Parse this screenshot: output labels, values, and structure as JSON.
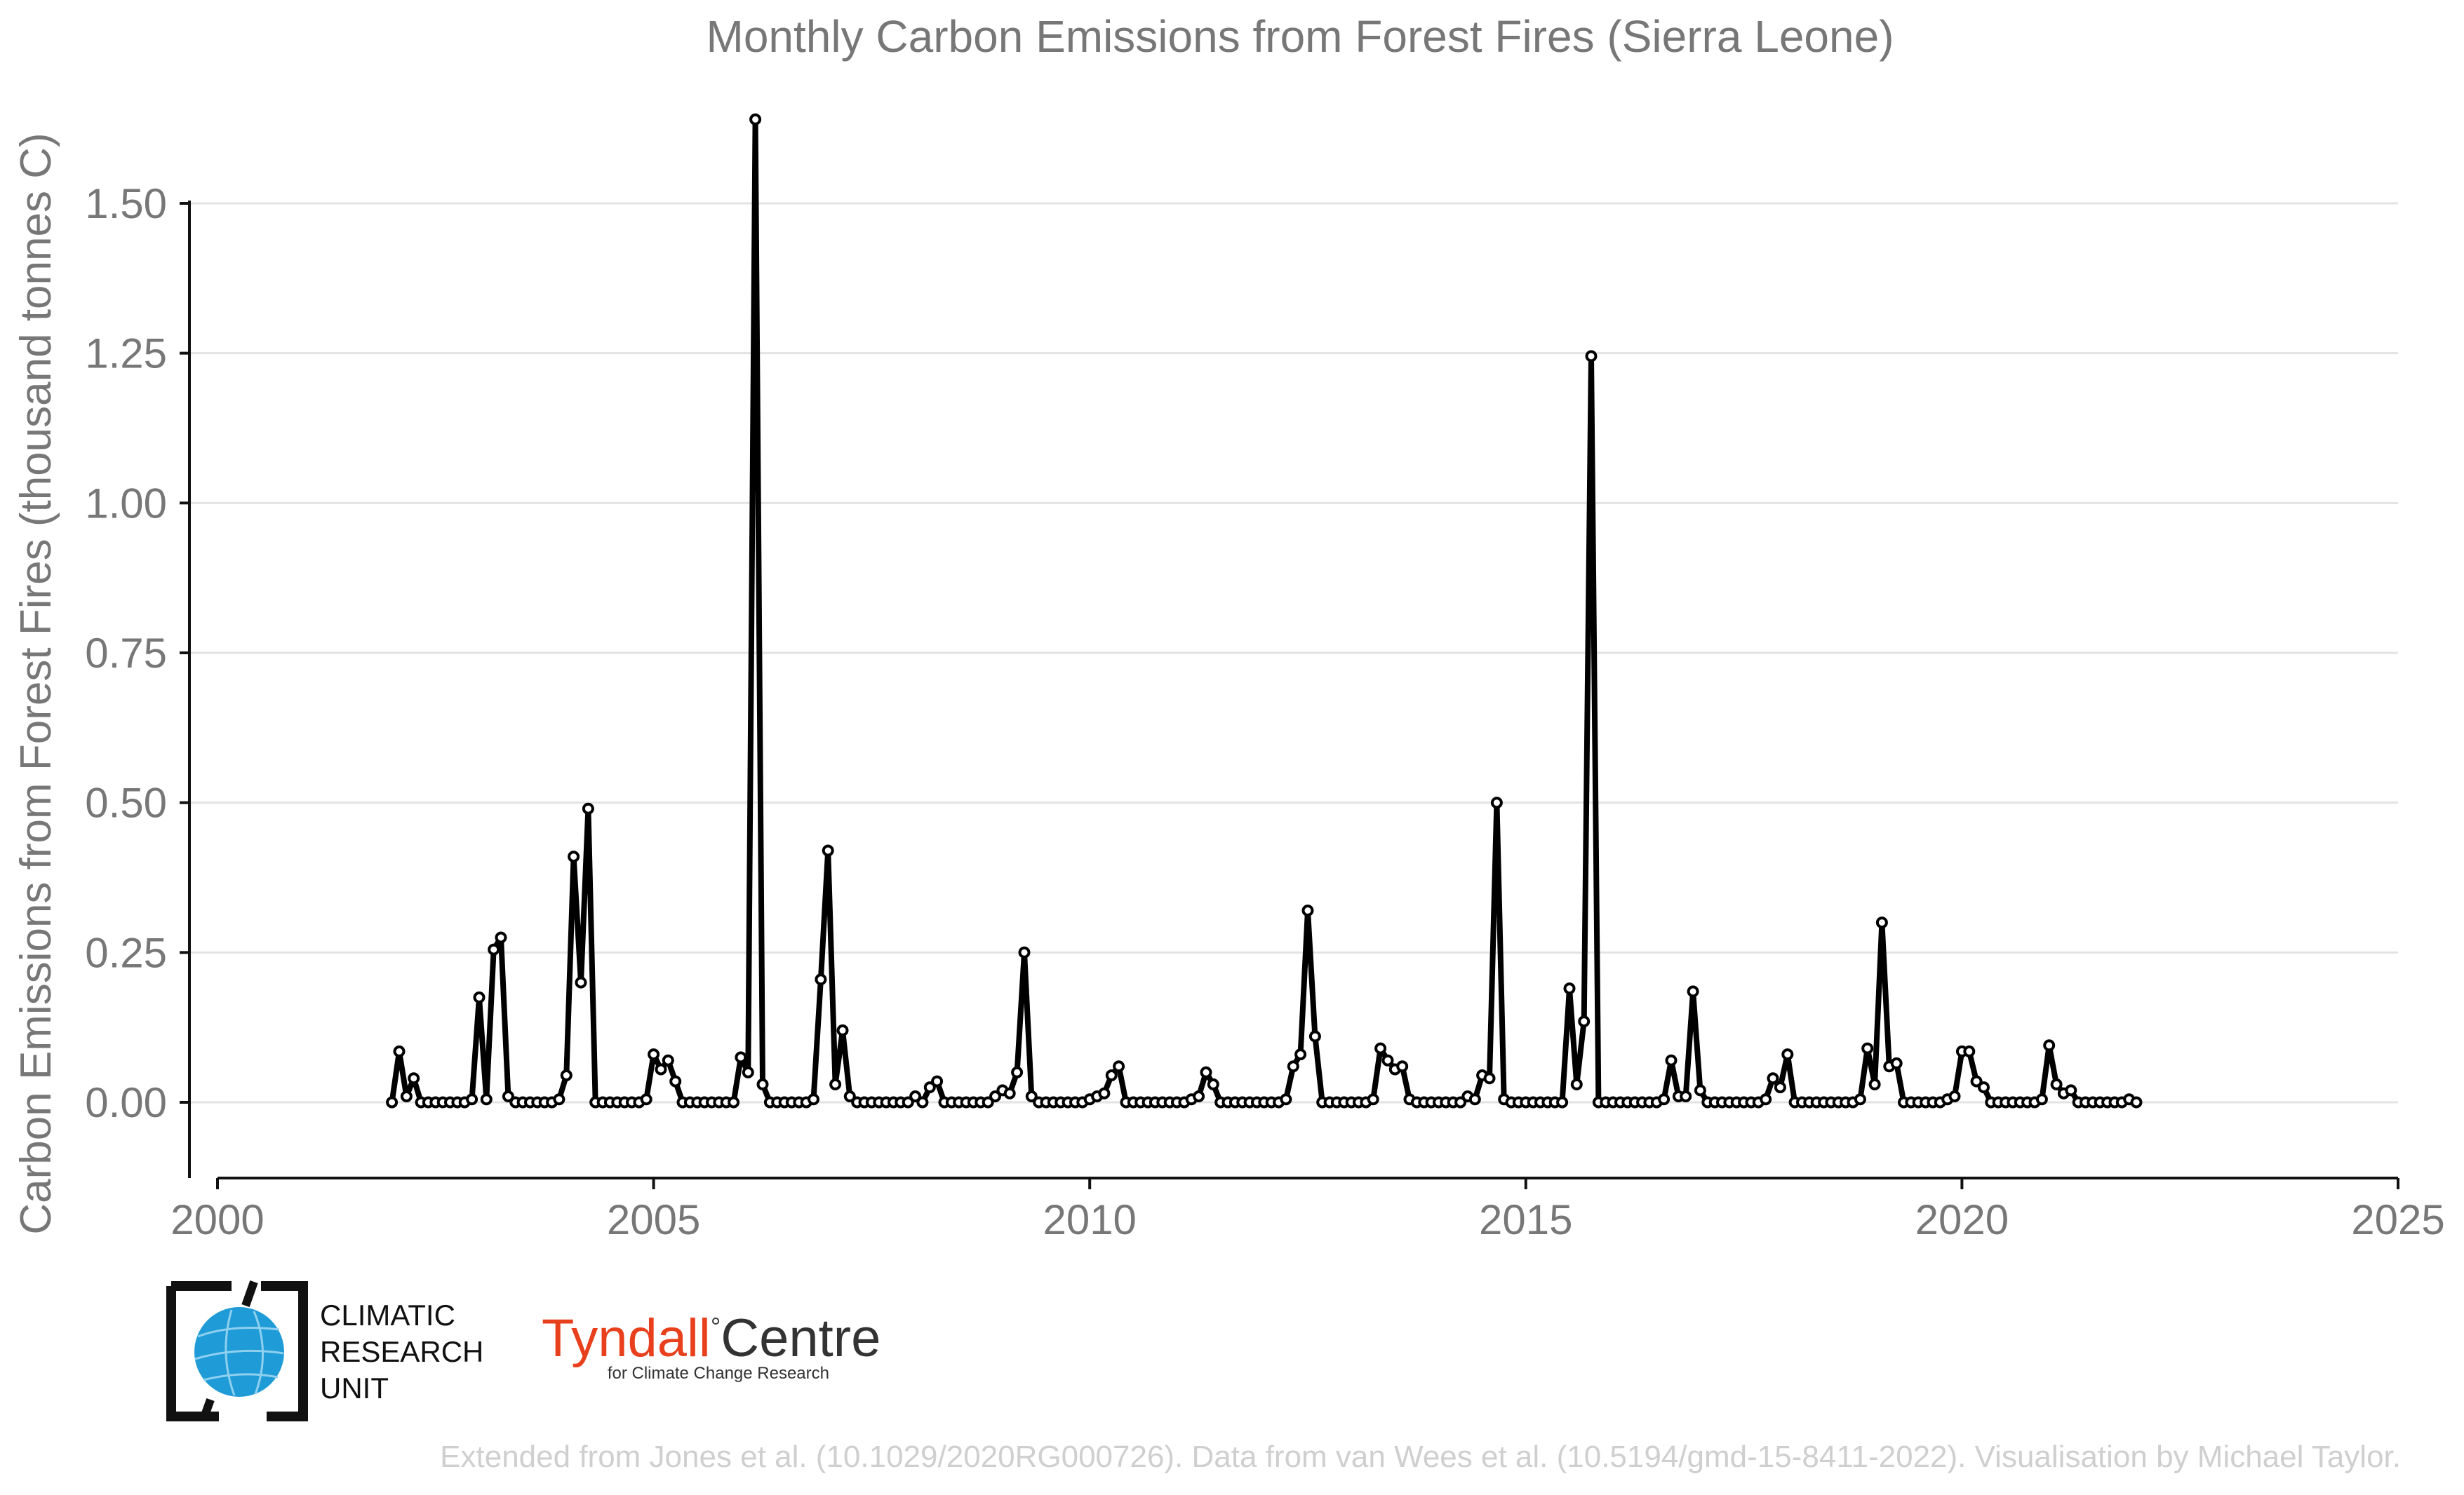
{
  "chart_data": {
    "type": "line",
    "title": "Monthly Carbon Emissions from Forest Fires (Sierra Leone)",
    "xlabel": "",
    "ylabel": "Carbon Emissions from Forest Fires (thousand tonnes C)",
    "xlim": [
      2000,
      2025
    ],
    "ylim": [
      -0.13,
      1.68
    ],
    "xticks": [
      2000,
      2005,
      2010,
      2015,
      2020,
      2025
    ],
    "yticks": [
      0.0,
      0.25,
      0.5,
      0.75,
      1.0,
      1.25,
      1.5
    ],
    "ytick_labels": [
      "0.00",
      "0.25",
      "0.50",
      "0.75",
      "1.00",
      "1.25",
      "1.50"
    ],
    "grid": "horizontal",
    "x_start": "2002-01",
    "x_step": "1 month",
    "series": [
      {
        "values": [
          0.0,
          0.085,
          0.01,
          0.04,
          0.0,
          0.0,
          0.0,
          0.0,
          0.0,
          0.0,
          0.0,
          0.005,
          0.175,
          0.005,
          0.255,
          0.275,
          0.01,
          0.0,
          0.0,
          0.0,
          0.0,
          0.0,
          0.0,
          0.005,
          0.045,
          0.41,
          0.2,
          0.49,
          0.0,
          0.0,
          0.0,
          0.0,
          0.0,
          0.0,
          0.0,
          0.005,
          0.08,
          0.055,
          0.07,
          0.035,
          0.0,
          0.0,
          0.0,
          0.0,
          0.0,
          0.0,
          0.0,
          0.0,
          0.075,
          0.05,
          1.64,
          0.03,
          0.0,
          0.0,
          0.0,
          0.0,
          0.0,
          0.0,
          0.005,
          0.205,
          0.42,
          0.03,
          0.12,
          0.01,
          0.0,
          0.0,
          0.0,
          0.0,
          0.0,
          0.0,
          0.0,
          0.0,
          0.01,
          0.0,
          0.025,
          0.035,
          0.0,
          0.0,
          0.0,
          0.0,
          0.0,
          0.0,
          0.0,
          0.01,
          0.02,
          0.015,
          0.05,
          0.25,
          0.01,
          0.0,
          0.0,
          0.0,
          0.0,
          0.0,
          0.0,
          0.0,
          0.005,
          0.01,
          0.015,
          0.045,
          0.06,
          0.0,
          0.0,
          0.0,
          0.0,
          0.0,
          0.0,
          0.0,
          0.0,
          0.0,
          0.005,
          0.01,
          0.05,
          0.03,
          0.0,
          0.0,
          0.0,
          0.0,
          0.0,
          0.0,
          0.0,
          0.0,
          0.0,
          0.005,
          0.06,
          0.08,
          0.32,
          0.11,
          0.0,
          0.0,
          0.0,
          0.0,
          0.0,
          0.0,
          0.0,
          0.005,
          0.09,
          0.07,
          0.055,
          0.06,
          0.005,
          0.0,
          0.0,
          0.0,
          0.0,
          0.0,
          0.0,
          0.0,
          0.01,
          0.005,
          0.045,
          0.04,
          0.5,
          0.005,
          0.0,
          0.0,
          0.0,
          0.0,
          0.0,
          0.0,
          0.0,
          0.0,
          0.19,
          0.03,
          0.135,
          1.245,
          0.0,
          0.0,
          0.0,
          0.0,
          0.0,
          0.0,
          0.0,
          0.0,
          0.0,
          0.005,
          0.07,
          0.01,
          0.01,
          0.185,
          0.02,
          0.0,
          0.0,
          0.0,
          0.0,
          0.0,
          0.0,
          0.0,
          0.0,
          0.005,
          0.04,
          0.025,
          0.08,
          0.0,
          0.0,
          0.0,
          0.0,
          0.0,
          0.0,
          0.0,
          0.0,
          0.0,
          0.005,
          0.09,
          0.03,
          0.3,
          0.06,
          0.065,
          0.0,
          0.0,
          0.0,
          0.0,
          0.0,
          0.0,
          0.005,
          0.01,
          0.085,
          0.085,
          0.035,
          0.025,
          0.0,
          0.0,
          0.0,
          0.0,
          0.0,
          0.0,
          0.0,
          0.005,
          0.095,
          0.03,
          0.015,
          0.02,
          0.0,
          0.0,
          0.0,
          0.0,
          0.0,
          0.0,
          0.0,
          0.005,
          0.0
        ]
      }
    ]
  },
  "logos": {
    "cru_line1": "CLIMATIC",
    "cru_line2": "RESEARCH",
    "cru_line3": "UNIT",
    "tyndall_name": "Tyndall",
    "tyndall_degree": "°",
    "tyndall_centre": "Centre",
    "tyndall_sub": "for Climate Change Research",
    "tyndall_color": "#e8401c"
  },
  "footer": {
    "credit": "Extended from Jones et al. (10.1029/2020RG000726). Data from van Wees et al. (10.5194/gmd-15-8411-2022). Visualisation by Michael Taylor."
  },
  "colors": {
    "line": "#000000",
    "marker_fill": "#ffffff",
    "text": "#777777",
    "grid": "#e3e3e3",
    "cru_globe": "#1f9bd7"
  }
}
